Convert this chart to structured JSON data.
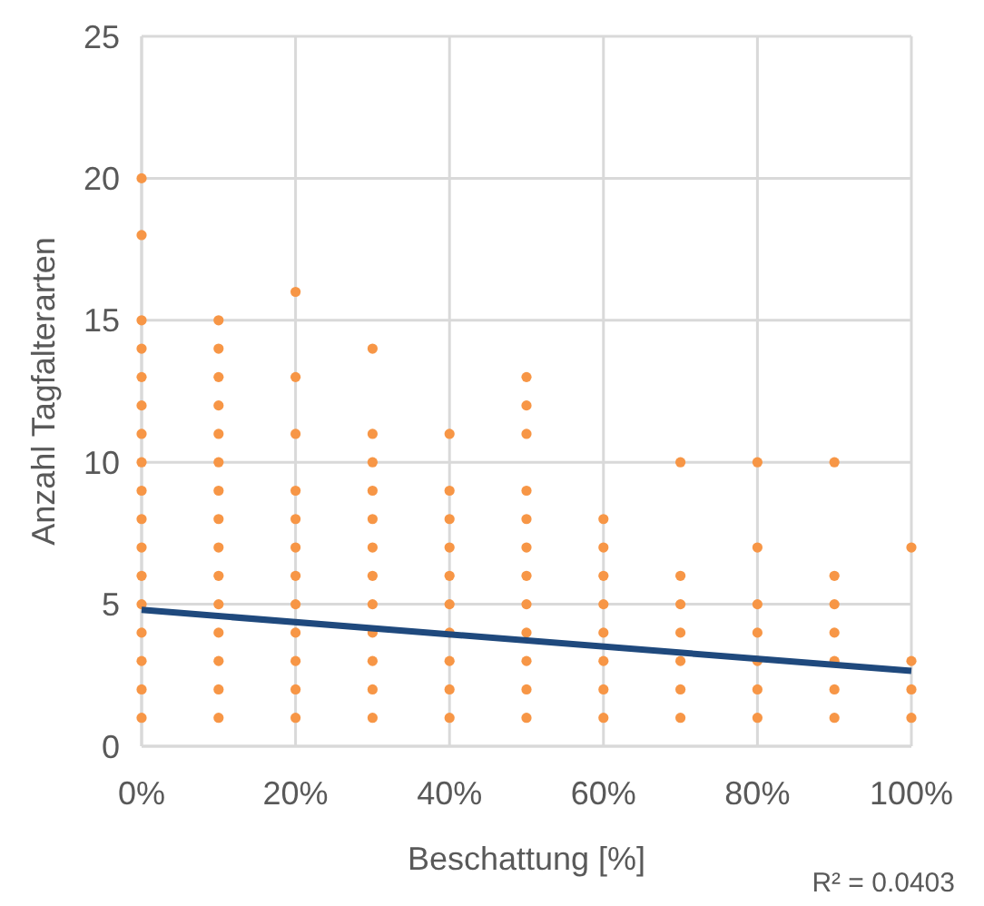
{
  "chart_data": {
    "type": "scatter",
    "xlabel": "Beschattung [%]",
    "ylabel": "Anzahl Tagfalterarten",
    "xlim": [
      0,
      100
    ],
    "ylim": [
      0,
      25
    ],
    "xticks": [
      {
        "value": 0,
        "label": "0%"
      },
      {
        "value": 20,
        "label": "20%"
      },
      {
        "value": 40,
        "label": "40%"
      },
      {
        "value": 60,
        "label": "60%"
      },
      {
        "value": 80,
        "label": "80%"
      },
      {
        "value": 100,
        "label": "100%"
      }
    ],
    "yticks": [
      0,
      5,
      10,
      15,
      20,
      25
    ],
    "grid": true,
    "annotations": [
      "R² = 0.0403"
    ],
    "series": [
      {
        "color": "#f79646",
        "marker": "circle",
        "x": [
          0,
          0,
          0,
          0,
          0,
          0,
          0,
          0,
          0,
          0,
          0,
          0,
          0,
          0,
          0,
          0,
          0,
          10,
          10,
          10,
          10,
          10,
          10,
          10,
          10,
          10,
          10,
          10,
          10,
          10,
          10,
          10,
          20,
          20,
          20,
          20,
          20,
          20,
          20,
          20,
          20,
          20,
          20,
          20,
          30,
          30,
          30,
          30,
          30,
          30,
          30,
          30,
          30,
          30,
          30,
          30,
          40,
          40,
          40,
          40,
          40,
          40,
          40,
          40,
          40,
          40,
          50,
          50,
          50,
          50,
          50,
          50,
          50,
          50,
          50,
          50,
          50,
          50,
          60,
          60,
          60,
          60,
          60,
          60,
          60,
          60,
          70,
          70,
          70,
          70,
          70,
          70,
          70,
          80,
          80,
          80,
          80,
          80,
          80,
          80,
          90,
          90,
          90,
          90,
          90,
          90,
          90,
          100,
          100,
          100,
          100
        ],
        "values": [
          1,
          2,
          3,
          4,
          5,
          6,
          7,
          8,
          9,
          10,
          11,
          12,
          13,
          14,
          15,
          18,
          20,
          1,
          2,
          3,
          4,
          5,
          6,
          7,
          8,
          9,
          10,
          11,
          12,
          13,
          14,
          15,
          1,
          2,
          3,
          4,
          5,
          6,
          7,
          8,
          9,
          11,
          13,
          16,
          1,
          2,
          3,
          4,
          5,
          6,
          7,
          8,
          9,
          10,
          11,
          14,
          1,
          2,
          3,
          4,
          5,
          6,
          7,
          8,
          9,
          11,
          1,
          2,
          3,
          4,
          5,
          6,
          7,
          8,
          9,
          11,
          12,
          13,
          1,
          2,
          3,
          4,
          5,
          6,
          7,
          8,
          1,
          2,
          3,
          4,
          5,
          6,
          10,
          1,
          2,
          3,
          4,
          5,
          7,
          10,
          1,
          2,
          3,
          4,
          5,
          6,
          10,
          1,
          2,
          3,
          7
        ]
      },
      {
        "type": "line",
        "color": "#1f497d",
        "x": [
          0,
          100
        ],
        "values": [
          4.8,
          2.65
        ],
        "marker": "none",
        "line_style": "solid"
      }
    ]
  }
}
